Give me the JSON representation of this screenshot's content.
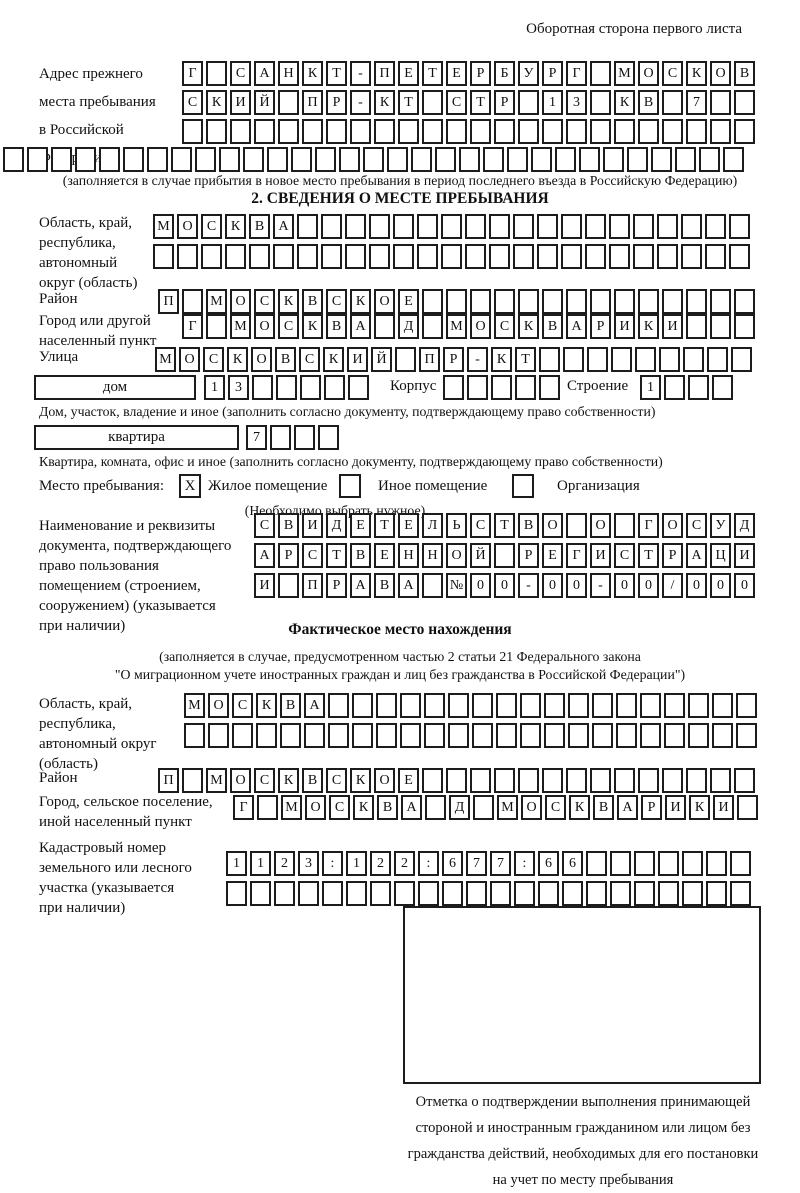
{
  "title": "Оборотная сторона первого листа",
  "prev_address": {
    "label": "Адрес прежнего\nместа пребывания\nв Российской\nФедерации",
    "row1": {
      "text": "Г САНКТ-ПЕТЕРБУРГ МОСКОВ",
      "cells": 24
    },
    "row2": {
      "text": "СКИЙ ПР-КТ СТР 13 КВ 7",
      "cells": 24
    },
    "row3": {
      "text": "",
      "cells": 24
    },
    "row4": {
      "text": "",
      "cells": 31
    },
    "note": "(заполняется в случае прибытия в новое место пребывания в период последнего въезда в Российскую Федерацию)"
  },
  "section2": {
    "header": "2. СВЕДЕНИЯ О МЕСТЕ ПРЕБЫВАНИЯ",
    "oblast": {
      "label": "Область, край,\nреспублика,\nавтономный\nокруг (область)",
      "row1": {
        "text": "МОСКВА",
        "cells": 25
      },
      "row2": {
        "text": "",
        "cells": 25
      }
    },
    "rayon": {
      "label": "Район",
      "row": {
        "text": "П МОСКВСКОЕ",
        "cells": 25
      }
    },
    "gorod": {
      "label": "Город или другой\nнаселенный пункт",
      "row": {
        "text": "Г МОСКВА Д МОСКВАРИКИ",
        "cells": 24
      }
    },
    "ulitsa": {
      "label": "Улица",
      "row": {
        "text": "МОСКОВСКИЙ ПР-КТ",
        "cells": 25
      }
    },
    "dom": {
      "box_label": "дом",
      "cells": {
        "text": "13",
        "cells": 7
      },
      "korpus_label": "Корпус",
      "korpus_cells": {
        "text": "",
        "cells": 5
      },
      "stroenie_label": "Строение",
      "stroenie_cells": {
        "text": "1",
        "cells": 4
      },
      "caption": "Дом, участок, владение и иное (заполнить согласно документу, подтверждающему право собственности)"
    },
    "kvartira": {
      "box_label": "квартира",
      "cells": {
        "text": "7",
        "cells": 4
      },
      "caption": "Квартира, комната, офис и иное (заполнить согласно документу, подтверждающему право собственности)"
    },
    "mesto": {
      "label": "Место пребывания:",
      "options": [
        {
          "mark": "X",
          "label": "Жилое помещение"
        },
        {
          "mark": "",
          "label": "Иное помещение"
        },
        {
          "mark": "",
          "label": "Организация"
        }
      ],
      "note": "(Необходимо выбрать нужное)"
    },
    "doc": {
      "label": "Наименование и реквизиты\nдокумента, подтверждающего\nправо пользования\nпомещением (строением,\nсооружением) (указывается\nпри наличии)",
      "row1": {
        "text": "СВИДЕТЕЛЬСТВО О ГОСУД",
        "cells": 21
      },
      "row2": {
        "text": "АРСТВЕННОЙ РЕГИСТРАЦИ",
        "cells": 21
      },
      "row3": {
        "text": "И ПРАВА №00-00-00/000",
        "cells": 21
      }
    }
  },
  "fact": {
    "header": "Фактическое место нахождения",
    "note1": "(заполняется в случае, предусмотренном частью 2 статьи 21 Федерального закона",
    "note2": "\"О миграционном учете иностранных граждан и лиц без гражданства в Российской Федерации\")",
    "oblast": {
      "label": "Область, край,\nреспублика,\nавтономный округ\n(область)",
      "row1": {
        "text": "МОСКВА",
        "cells": 24
      },
      "row2": {
        "text": "",
        "cells": 24
      }
    },
    "rayon": {
      "label": "Район",
      "row": {
        "text": "П МОСКВСКОЕ",
        "cells": 25
      }
    },
    "gorod": {
      "label": "Город, сельское поселение,\nиной населенный пункт",
      "row": {
        "text": "Г МОСКВА Д МОСКВАРИКИ",
        "cells": 22
      }
    },
    "kadastr": {
      "label": "Кадастровый номер\nземельного или лесного\nучастка (указывается\nпри наличии)",
      "row1": {
        "text": "1123:122:677:66",
        "cells": 22
      },
      "row2": {
        "text": "",
        "cells": 22
      }
    }
  },
  "stamp": {
    "caption": "Отметка о подтверждении выполнения принимающей\nстороной и иностранным гражданином или лицом без\nгражданства действий, необходимых для его постановки\nна учет по месту пребывания"
  }
}
